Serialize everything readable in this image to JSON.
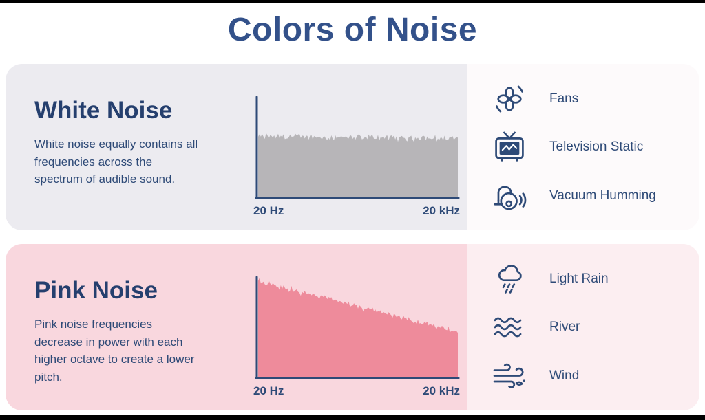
{
  "title": "Colors of Noise",
  "theme": {
    "navy": "#2e4a77",
    "title_color": "#33518a",
    "heading_color": "#253f6e",
    "background": "#ffffff"
  },
  "panels": [
    {
      "name": "White Noise",
      "description": "White noise equally contains all frequencies across the spectrum of audible sound.",
      "colors": {
        "main_bg": "#ecebf0",
        "examples_bg": "#fdfafb"
      },
      "chart": {
        "type": "area",
        "profile": "flat",
        "x_start_label": "20 Hz",
        "x_end_label": "20 kHz",
        "fill_color": "#b7b5b8",
        "start_level": 0.62,
        "end_level": 0.6,
        "meaning": "equal power at all frequencies"
      },
      "examples": [
        {
          "icon": "fan-icon",
          "label": "Fans"
        },
        {
          "icon": "tv-static-icon",
          "label": "Television Static"
        },
        {
          "icon": "vacuum-icon",
          "label": "Vacuum Humming"
        }
      ]
    },
    {
      "name": "Pink Noise",
      "description": "Pink noise frequencies decrease in power with each higher octave to create a lower pitch.",
      "colors": {
        "main_bg": "#f9d7de",
        "examples_bg": "#fceef1"
      },
      "chart": {
        "type": "area",
        "profile": "declining",
        "x_start_label": "20 Hz",
        "x_end_label": "20 kHz",
        "fill_color": "#ee8b9b",
        "start_level": 0.97,
        "end_level": 0.47,
        "meaning": "power decreases with each higher octave"
      },
      "examples": [
        {
          "icon": "rain-cloud-icon",
          "label": "Light Rain"
        },
        {
          "icon": "river-icon",
          "label": "River"
        },
        {
          "icon": "wind-icon",
          "label": "Wind"
        }
      ]
    }
  ]
}
